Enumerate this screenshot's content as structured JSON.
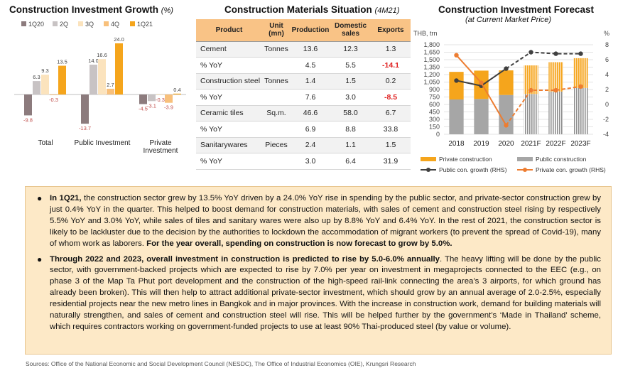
{
  "growth_chart": {
    "title": "Construction Investment Growth",
    "title_unit": "(%)",
    "chart_data": {
      "type": "bar",
      "title": "Construction Investment Growth (%)",
      "categories": [
        "Total",
        "Public Investment",
        "Private Investment"
      ],
      "series": [
        {
          "name": "1Q20",
          "color": "#8c7b7d",
          "values": [
            -9.8,
            -13.7,
            -4.5
          ]
        },
        {
          "name": "2Q",
          "color": "#c8c3c4",
          "values": [
            6.3,
            14.0,
            -3.1
          ]
        },
        {
          "name": "3Q",
          "color": "#fbe3bd",
          "values": [
            9.3,
            16.6,
            -0.3
          ]
        },
        {
          "name": "4Q",
          "color": "#f8c07b",
          "values": [
            -0.3,
            2.7,
            -3.9
          ]
        },
        {
          "name": "1Q21",
          "color": "#f5a51c",
          "values": [
            13.5,
            24.0,
            0.4
          ]
        }
      ],
      "value_labels": [
        [
          "-9.8",
          "6.3",
          "9.3",
          "-0.3",
          "13.5"
        ],
        [
          "-13.7",
          "14.0",
          "16.6",
          "2.7",
          "24.0"
        ],
        [
          "-4.5",
          "-3.1",
          "-0.3",
          "-3.9",
          "0.4"
        ]
      ],
      "negative_label_color": "#c0504d",
      "legend_position": "top"
    }
  },
  "materials_table": {
    "title": "Construction Materials Situation",
    "title_period": "(4M21)",
    "headers": [
      "Product",
      "Unit\n(mn)",
      "Production",
      "Domestic\nsales",
      "Exports"
    ],
    "rows": [
      {
        "product": "Cement",
        "unit": "Tonnes",
        "production": "13.6",
        "domestic": "12.3",
        "exports": "1.3",
        "kind": "main"
      },
      {
        "product": "% YoY",
        "unit": "",
        "production": "4.5",
        "domestic": "5.5",
        "exports": "-14.1",
        "kind": "yoy",
        "exports_negative": true
      },
      {
        "product": "Construction steel",
        "unit": "Tonnes",
        "production": "1.4",
        "domestic": "1.5",
        "exports": "0.2",
        "kind": "main"
      },
      {
        "product": "% YoY",
        "unit": "",
        "production": "7.6",
        "domestic": "3.0",
        "exports": "-8.5",
        "kind": "yoy",
        "exports_negative": true
      },
      {
        "product": "Ceramic tiles",
        "unit": "Sq.m.",
        "production": "46.6",
        "domestic": "58.0",
        "exports": "6.7",
        "kind": "main"
      },
      {
        "product": "% YoY",
        "unit": "",
        "production": "6.9",
        "domestic": "8.8",
        "exports": "33.8",
        "kind": "yoy"
      },
      {
        "product": "Sanitarywares",
        "unit": "Pieces",
        "production": "2.4",
        "domestic": "1.1",
        "exports": "1.5",
        "kind": "main"
      },
      {
        "product": "% YoY",
        "unit": "",
        "production": "3.0",
        "domestic": "6.4",
        "exports": "31.9",
        "kind": "yoy"
      }
    ]
  },
  "forecast_chart": {
    "title": "Construction Investment Forecast",
    "subtitle": "(at Current Market Price)",
    "chart_data": {
      "type": "bar",
      "title": "Construction Investment Forecast",
      "subtitle": "(at Current Market Price)",
      "ylabel_left": "THB, trn",
      "ylabel_right": "%",
      "categories": [
        "2018",
        "2019",
        "2020",
        "2021F",
        "2022F",
        "2023F"
      ],
      "ylim_left": [
        0,
        1800
      ],
      "yticks_left": [
        "0",
        "150",
        "300",
        "450",
        "600",
        "750",
        "900",
        "1,050",
        "1,200",
        "1,350",
        "1,500",
        "1,650",
        "1,800"
      ],
      "ylim_right": [
        -4,
        8
      ],
      "yticks_right": [
        "-4",
        "-2",
        "0",
        "2",
        "4",
        "6",
        "8"
      ],
      "stacked_bars": [
        {
          "name": "Public construction",
          "color": "#a6a6a6",
          "values": [
            700,
            710,
            790,
            810,
            860,
            930
          ]
        },
        {
          "name": "Private construction",
          "color": "#f5a51c",
          "values": [
            555,
            570,
            495,
            575,
            590,
            600
          ]
        }
      ],
      "lines": [
        {
          "name": "Public con. growth (RHS)",
          "color": "#404040",
          "values": [
            3.2,
            2.5,
            4.8,
            7.0,
            6.8,
            6.8
          ]
        },
        {
          "name": "Private con. growth (RHS)",
          "color": "#ed7d31",
          "values": [
            6.6,
            2.9,
            -2.8,
            1.9,
            1.9,
            2.4
          ]
        }
      ],
      "forecast_from": "2021F",
      "legend": [
        "Private construction",
        "Public construction",
        "Public con. growth (RHS)",
        "Private con. growth (RHS)"
      ],
      "legend_position": "bottom"
    }
  },
  "summary": {
    "p1_lead": "In 1Q21,",
    "p1_text": " the construction sector grew by 13.5% YoY driven by a 24.0% YoY rise in spending by the public sector, and private-sector construction grew by just 0.4% YoY in the quarter. This helped to boost demand for construction materials, with sales of cement and construction steel rising by respectively 5.5% YoY and 3.0% YoY, while sales of tiles and sanitary wares were also up by 8.8% YoY and 6.4% YoY. In the rest of 2021, the construction sector is likely to be lackluster due to the decision by the authorities to lockdown the accommodation of migrant workers (to prevent the spread of Covid-19), many of whom work as laborers. ",
    "p1_bold_end": "For the year overall, spending on construction is now forecast to grow by 5.0%.",
    "p2_lead": "Through 2022 and 2023, overall investment in construction is predicted to rise by 5.0-6.0% annually",
    "p2_text": ". The heavy lifting will be done by the public sector, with government-backed projects which are expected to rise by 7.0% per year on investment in megaprojects connected to the EEC (e.g., on phase 3 of the Map Ta Phut port development and the construction of the high-speed rail-link connecting the area’s 3 airports, for which ground has already been broken). This will then help to attract additional private-sector investment, which should grow by an annual average of 2.0-2.5%, especially residential projects near the new metro lines in Bangkok and in major provinces. With the increase in construction work, demand for building materials will naturally strengthen, and sales of cement and construction steel will rise. This will be helped further by the government’s ‘Made in Thailand’ scheme, which requires contractors working on government-funded projects to use at least 90% Thai-produced steel (by value or volume).",
    "bullet_icon": "●"
  },
  "source": "Sources: Office of the National Economic and Social Development Council (NESDC), The Office of Industrial Economics (OIE), Krungsri Research"
}
